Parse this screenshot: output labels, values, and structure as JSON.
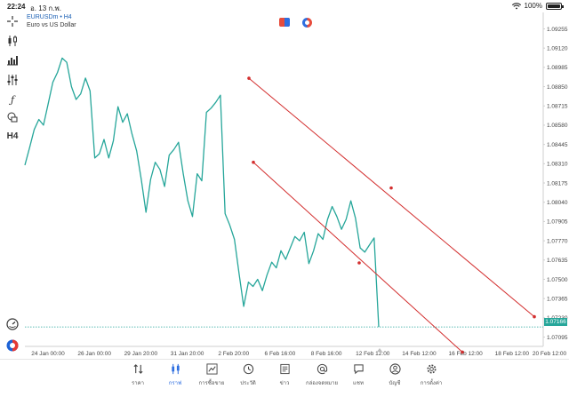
{
  "status_bar": {
    "time": "22:24",
    "date": "อ. 13 ก.พ.",
    "battery": "100%"
  },
  "symbol": {
    "title": "EURUSDm • H4",
    "description": "Euro vs US Dollar"
  },
  "toolbar": {
    "timeframe": "H4"
  },
  "price_axis": {
    "labels": [
      "1.09255",
      "1.09120",
      "1.08985",
      "1.08850",
      "1.08715",
      "1.08580",
      "1.08445",
      "1.08310",
      "1.08175",
      "1.08040",
      "1.07905",
      "1.07770",
      "1.07635",
      "1.07500",
      "1.07365",
      "1.07230",
      "1.07095"
    ],
    "current_price": "1.07166"
  },
  "time_axis": {
    "labels": [
      "24 Jan 00:00",
      "26 Jan 00:00",
      "29 Jan 20:00",
      "31 Jan 20:00",
      "2 Feb 20:00",
      "6 Feb 16:00",
      "8 Feb 16:00",
      "12 Feb 12:00",
      "14 Feb 12:00",
      "16 Feb 12:00",
      "18 Feb 12:00",
      "20 Feb 12:00"
    ]
  },
  "chart_data": {
    "type": "line",
    "symbol": "EURUSDm",
    "timeframe": "H4",
    "line_color": "#26a69a",
    "ylim": [
      1.0703,
      1.0937
    ],
    "current_price": 1.07166,
    "series": [
      {
        "values": [
          1.083,
          1.0842,
          1.0855,
          1.0862,
          1.0858,
          1.0873,
          1.0888,
          1.0895,
          1.0905,
          1.0902,
          1.0885,
          1.0876,
          1.088,
          1.0891,
          1.0882,
          1.0835,
          1.0838,
          1.0848,
          1.0835,
          1.0847,
          1.0871,
          1.086,
          1.0866,
          1.0852,
          1.084,
          1.082,
          1.0797,
          1.082,
          1.0832,
          1.0827,
          1.0815,
          1.0837,
          1.0841,
          1.0846,
          1.0824,
          1.0805,
          1.0794,
          1.0824,
          1.0819,
          1.0867,
          1.087,
          1.0874,
          1.0879,
          1.0796,
          1.0788,
          1.0778,
          1.0754,
          1.0731,
          1.0748,
          1.0745,
          1.075,
          1.0742,
          1.0753,
          1.0762,
          1.0758,
          1.077,
          1.0764,
          1.0772,
          1.078,
          1.0777,
          1.0783,
          1.0761,
          1.077,
          1.0782,
          1.0778,
          1.0792,
          1.0801,
          1.0794,
          1.0785,
          1.0792,
          1.0805,
          1.0793,
          1.0772,
          1.0769,
          1.0774,
          1.0779,
          1.07166
        ]
      }
    ],
    "trendlines": [
      {
        "color": "#d32f2f",
        "points": [
          [
            0,
            1.08909
          ],
          [
            1,
            1.0814
          ],
          [
            2,
            1.07238
          ]
        ]
      },
      {
        "color": "#d32f2f",
        "points": [
          [
            0,
            1.0832
          ],
          [
            1,
            1.07615
          ],
          [
            2,
            1.0699
          ]
        ]
      }
    ]
  },
  "bottom_nav": {
    "items": [
      {
        "icon": "sort-arrows-icon",
        "label": "ราคา"
      },
      {
        "icon": "candlestick-icon",
        "label": "กราฟ",
        "active": true
      },
      {
        "icon": "trend-chart-icon",
        "label": "การซื้อขาย"
      },
      {
        "icon": "history-clock-icon",
        "label": "ประวัติ"
      },
      {
        "icon": "news-icon",
        "label": "ข่าว"
      },
      {
        "icon": "at-sign-icon",
        "label": "กล่องจดหมาย"
      },
      {
        "icon": "chat-bubble-icon",
        "label": "แชท"
      },
      {
        "icon": "user-circle-icon",
        "label": "บัญชี"
      },
      {
        "icon": "gear-icon",
        "label": "การตั้งค่า"
      }
    ]
  }
}
